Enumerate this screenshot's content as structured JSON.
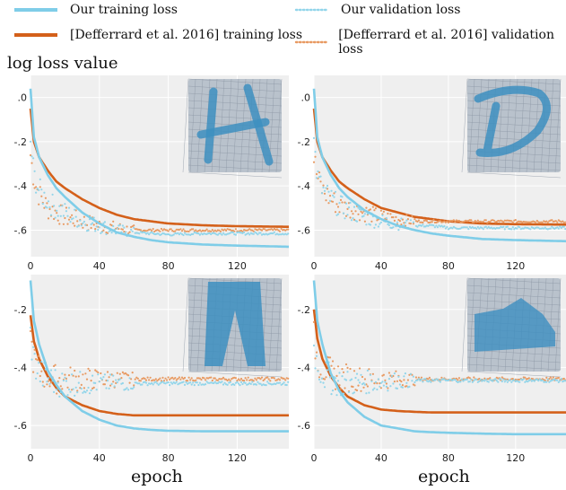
{
  "legend": {
    "items": [
      {
        "label": "Our training loss",
        "color": "#7fcde8",
        "style": "solid"
      },
      {
        "label": "Our validation loss",
        "color": "#92d5ea",
        "style": "dotted"
      },
      {
        "label": "[Defferrard et al. 2016] training loss",
        "color": "#d4601a",
        "style": "solid"
      },
      {
        "label": "[Defferrard et al. 2016] validation loss",
        "color": "#e89a62",
        "style": "dotted"
      }
    ]
  },
  "y_axis_title": "log loss value",
  "x_axis_title": "epoch",
  "chart_data": [
    {
      "type": "line",
      "panel": "top-left",
      "thumbnail": "handwritten letter H on triangle mesh",
      "x": [
        0,
        2,
        5,
        10,
        15,
        20,
        30,
        40,
        50,
        60,
        70,
        80,
        100,
        120,
        150
      ],
      "xlim": [
        0,
        150
      ],
      "ylim": [
        -0.72,
        0.1
      ],
      "xticks": [
        "0",
        "40",
        "80",
        "120"
      ],
      "yticks": [
        ".0",
        "-.2",
        "-.4",
        "-.6"
      ],
      "series": [
        {
          "name": "Our training loss",
          "values": [
            0.04,
            -0.18,
            -0.27,
            -0.35,
            -0.41,
            -0.45,
            -0.52,
            -0.57,
            -0.61,
            -0.63,
            -0.645,
            -0.655,
            -0.665,
            -0.67,
            -0.675
          ]
        },
        {
          "name": "Our validation loss",
          "values": [
            -0.2,
            -0.35,
            -0.42,
            -0.47,
            -0.5,
            -0.52,
            -0.56,
            -0.58,
            -0.6,
            -0.61,
            -0.615,
            -0.62,
            -0.615,
            -0.615,
            -0.615
          ]
        },
        {
          "name": "[Defferrard et al. 2016] training loss",
          "values": [
            -0.05,
            -0.2,
            -0.27,
            -0.33,
            -0.38,
            -0.41,
            -0.46,
            -0.5,
            -0.53,
            -0.55,
            -0.56,
            -0.57,
            -0.578,
            -0.582,
            -0.585
          ]
        },
        {
          "name": "[Defferrard et al. 2016] validation loss",
          "values": [
            -0.26,
            -0.37,
            -0.44,
            -0.5,
            -0.52,
            -0.54,
            -0.56,
            -0.58,
            -0.59,
            -0.6,
            -0.6,
            -0.6,
            -0.6,
            -0.6,
            -0.6
          ]
        }
      ]
    },
    {
      "type": "line",
      "panel": "top-right",
      "thumbnail": "handwritten letter D on triangle mesh",
      "x": [
        0,
        2,
        5,
        10,
        15,
        20,
        30,
        40,
        50,
        60,
        70,
        80,
        100,
        120,
        150
      ],
      "xlim": [
        0,
        150
      ],
      "ylim": [
        -0.72,
        0.1
      ],
      "xticks": [
        "0",
        "40",
        "80",
        "120"
      ],
      "yticks": [
        ".0",
        "-.2",
        "-.4",
        "-.6"
      ],
      "series": [
        {
          "name": "Our training loss",
          "values": [
            0.04,
            -0.18,
            -0.27,
            -0.35,
            -0.41,
            -0.45,
            -0.51,
            -0.55,
            -0.58,
            -0.6,
            -0.615,
            -0.625,
            -0.64,
            -0.645,
            -0.65
          ]
        },
        {
          "name": "Our validation loss",
          "values": [
            -0.2,
            -0.36,
            -0.42,
            -0.46,
            -0.49,
            -0.51,
            -0.54,
            -0.56,
            -0.57,
            -0.58,
            -0.58,
            -0.59,
            -0.59,
            -0.59,
            -0.59
          ]
        },
        {
          "name": "[Defferrard et al. 2016] training loss",
          "values": [
            -0.05,
            -0.2,
            -0.27,
            -0.33,
            -0.38,
            -0.41,
            -0.46,
            -0.5,
            -0.52,
            -0.54,
            -0.55,
            -0.56,
            -0.57,
            -0.573,
            -0.575
          ]
        },
        {
          "name": "[Defferrard et al. 2016] validation loss",
          "values": [
            -0.27,
            -0.36,
            -0.42,
            -0.46,
            -0.49,
            -0.5,
            -0.52,
            -0.54,
            -0.55,
            -0.56,
            -0.56,
            -0.56,
            -0.56,
            -0.56,
            -0.56
          ]
        }
      ]
    },
    {
      "type": "line",
      "panel": "bottom-left",
      "thumbnail": "trousers image on triangle mesh",
      "x": [
        0,
        2,
        5,
        10,
        15,
        20,
        30,
        40,
        50,
        60,
        70,
        80,
        100,
        120,
        150
      ],
      "xlim": [
        0,
        150
      ],
      "ylim": [
        -0.68,
        -0.08
      ],
      "xticks": [
        "0",
        "40",
        "80",
        "120"
      ],
      "yticks": [
        "-.2",
        "-.4",
        "-.6"
      ],
      "series": [
        {
          "name": "Our training loss",
          "values": [
            -0.1,
            -0.24,
            -0.32,
            -0.41,
            -0.46,
            -0.5,
            -0.55,
            -0.58,
            -0.6,
            -0.61,
            -0.615,
            -0.618,
            -0.62,
            -0.62,
            -0.62
          ]
        },
        {
          "name": "Our validation loss",
          "values": [
            -0.29,
            -0.38,
            -0.42,
            -0.44,
            -0.45,
            -0.455,
            -0.455,
            -0.455,
            -0.455,
            -0.455,
            -0.455,
            -0.455,
            -0.455,
            -0.455,
            -0.455
          ]
        },
        {
          "name": "[Defferrard et al. 2016] training loss",
          "values": [
            -0.22,
            -0.31,
            -0.37,
            -0.43,
            -0.47,
            -0.5,
            -0.53,
            -0.55,
            -0.56,
            -0.565,
            -0.565,
            -0.565,
            -0.565,
            -0.565,
            -0.565
          ]
        },
        {
          "name": "[Defferrard et al. 2016] validation loss",
          "values": [
            -0.3,
            -0.38,
            -0.41,
            -0.43,
            -0.44,
            -0.44,
            -0.44,
            -0.44,
            -0.44,
            -0.44,
            -0.44,
            -0.44,
            -0.44,
            -0.44,
            -0.44
          ]
        }
      ]
    },
    {
      "type": "line",
      "panel": "bottom-right",
      "thumbnail": "sneaker image on triangle mesh",
      "x": [
        0,
        2,
        5,
        10,
        15,
        20,
        30,
        40,
        50,
        60,
        70,
        80,
        100,
        120,
        150
      ],
      "xlim": [
        0,
        150
      ],
      "ylim": [
        -0.68,
        -0.08
      ],
      "xticks": [
        "0",
        "40",
        "80",
        "120"
      ],
      "yticks": [
        "-.2",
        "-.4",
        "-.6"
      ],
      "series": [
        {
          "name": "Our training loss",
          "values": [
            -0.1,
            -0.24,
            -0.32,
            -0.42,
            -0.48,
            -0.52,
            -0.57,
            -0.6,
            -0.61,
            -0.62,
            -0.623,
            -0.625,
            -0.628,
            -0.63,
            -0.63
          ]
        },
        {
          "name": "Our validation loss",
          "values": [
            -0.33,
            -0.39,
            -0.42,
            -0.44,
            -0.45,
            -0.455,
            -0.45,
            -0.45,
            -0.445,
            -0.445,
            -0.445,
            -0.445,
            -0.445,
            -0.445,
            -0.445
          ]
        },
        {
          "name": "[Defferrard et al. 2016] training loss",
          "values": [
            -0.2,
            -0.3,
            -0.37,
            -0.43,
            -0.47,
            -0.5,
            -0.53,
            -0.545,
            -0.55,
            -0.553,
            -0.555,
            -0.555,
            -0.555,
            -0.555,
            -0.555
          ]
        },
        {
          "name": "[Defferrard et al. 2016] validation loss",
          "values": [
            -0.3,
            -0.37,
            -0.4,
            -0.42,
            -0.43,
            -0.435,
            -0.44,
            -0.44,
            -0.44,
            -0.44,
            -0.44,
            -0.44,
            -0.44,
            -0.44,
            -0.44
          ]
        }
      ]
    }
  ]
}
